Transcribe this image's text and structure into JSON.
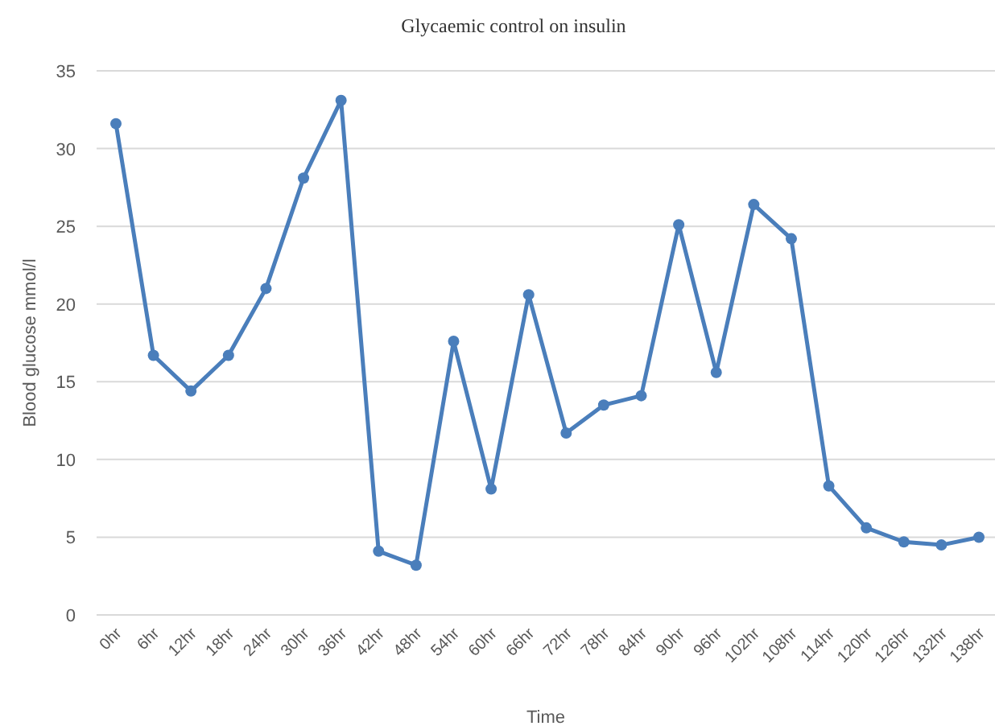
{
  "chart_data": {
    "type": "line",
    "title": "Glycaemic control on  insulin",
    "xlabel": "Time",
    "ylabel": "Blood glucose mmol/l",
    "categories": [
      "0hr",
      "6hr",
      "12hr",
      "18hr",
      "24hr",
      "30hr",
      "36hr",
      "42hr",
      "48hr",
      "54hr",
      "60hr",
      "66hr",
      "72hr",
      "78hr",
      "84hr",
      "90hr",
      "96hr",
      "102hr",
      "108hr",
      "114hr",
      "120hr",
      "126hr",
      "132hr",
      "138hr"
    ],
    "series": [
      {
        "color": "#4a7ebb",
        "values": [
          31.6,
          16.7,
          14.4,
          16.7,
          21.0,
          28.1,
          33.1,
          4.1,
          3.2,
          17.6,
          8.1,
          20.6,
          11.7,
          13.5,
          14.1,
          25.1,
          15.6,
          26.4,
          24.2,
          8.3,
          5.6,
          4.7,
          4.5,
          5.0
        ]
      }
    ],
    "ylim": [
      0,
      35
    ],
    "yticks": [
      0,
      5,
      10,
      15,
      20,
      25,
      30,
      35
    ],
    "grid": "y",
    "marker": "circle",
    "line_style": "solid"
  }
}
